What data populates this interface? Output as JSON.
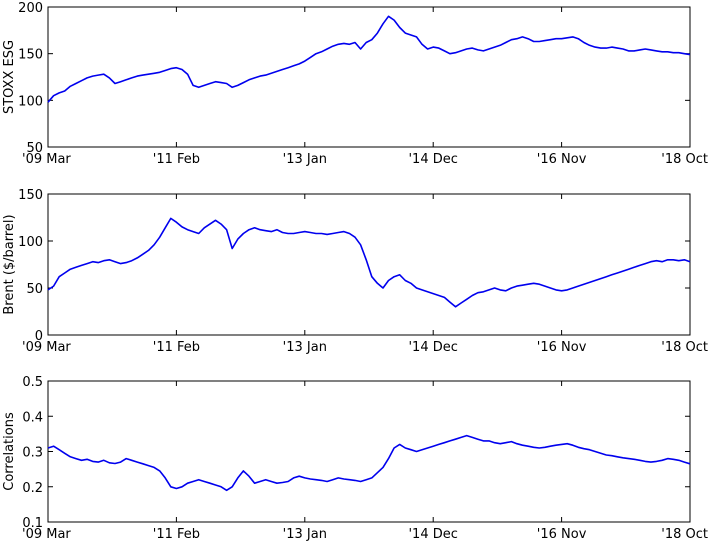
{
  "chart_data": [
    {
      "type": "line",
      "ylabel": "STOXX ESG",
      "xlabel": "",
      "title": "",
      "x_tick_labels": [
        "'09 Mar",
        "'11 Feb",
        "'13 Jan",
        "'14 Dec",
        "'16 Nov",
        "'18 Oct"
      ],
      "x_range": [
        0,
        115
      ],
      "ylim": [
        50,
        200
      ],
      "y_ticks": [
        50,
        100,
        150,
        200
      ],
      "line_color": "#0000ee",
      "series": [
        {
          "x": [
            0,
            1,
            2,
            3,
            4,
            5,
            6,
            7,
            8,
            9,
            10,
            11,
            12,
            13,
            14,
            15,
            16,
            17,
            18,
            19,
            20,
            21,
            22,
            23,
            24,
            25,
            26,
            27,
            28,
            29,
            30,
            31,
            32,
            33,
            34,
            35,
            36,
            37,
            38,
            39,
            40,
            41,
            42,
            43,
            44,
            45,
            46,
            47,
            48,
            49,
            50,
            51,
            52,
            53,
            54,
            55,
            56,
            57,
            58,
            59,
            60,
            61,
            62,
            63,
            64,
            65,
            66,
            67,
            68,
            69,
            70,
            71,
            72,
            73,
            74,
            75,
            76,
            77,
            78,
            79,
            80,
            81,
            82,
            83,
            84,
            85,
            86,
            87,
            88,
            89,
            90,
            91,
            92,
            93,
            94,
            95,
            96,
            97,
            98,
            99,
            100,
            101,
            102,
            103,
            104,
            105,
            106,
            107,
            108,
            109,
            110,
            111,
            112,
            113,
            114,
            115
          ],
          "values": [
            98,
            105,
            108,
            110,
            115,
            118,
            121,
            124,
            126,
            127,
            128,
            124,
            118,
            120,
            122,
            124,
            126,
            127,
            128,
            129,
            130,
            132,
            134,
            135,
            133,
            128,
            116,
            114,
            116,
            118,
            120,
            119,
            118,
            114,
            116,
            119,
            122,
            124,
            126,
            127,
            129,
            131,
            133,
            135,
            137,
            139,
            142,
            146,
            150,
            152,
            155,
            158,
            160,
            161,
            160,
            162,
            155,
            162,
            165,
            172,
            182,
            190,
            186,
            178,
            172,
            170,
            168,
            160,
            155,
            157,
            156,
            153,
            150,
            151,
            153,
            155,
            156,
            154,
            153,
            155,
            157,
            159,
            162,
            165,
            166,
            168,
            166,
            163,
            163,
            164,
            165,
            166,
            166,
            167,
            168,
            166,
            162,
            159,
            157,
            156,
            156,
            157,
            156,
            155,
            153,
            153,
            154,
            155,
            154,
            153,
            152,
            152,
            151,
            151,
            150,
            149
          ]
        }
      ]
    },
    {
      "type": "line",
      "ylabel": "Brent ($/barrel)",
      "xlabel": "",
      "title": "",
      "x_tick_labels": [
        "'09 Mar",
        "'11 Feb",
        "'13 Jan",
        "'14 Dec",
        "'16 Nov",
        "'18 Oct"
      ],
      "x_range": [
        0,
        115
      ],
      "ylim": [
        0,
        150
      ],
      "y_ticks": [
        0,
        50,
        100,
        150
      ],
      "line_color": "#0000ee",
      "series": [
        {
          "x": [
            0,
            1,
            2,
            3,
            4,
            5,
            6,
            7,
            8,
            9,
            10,
            11,
            12,
            13,
            14,
            15,
            16,
            17,
            18,
            19,
            20,
            21,
            22,
            23,
            24,
            25,
            26,
            27,
            28,
            29,
            30,
            31,
            32,
            33,
            34,
            35,
            36,
            37,
            38,
            39,
            40,
            41,
            42,
            43,
            44,
            45,
            46,
            47,
            48,
            49,
            50,
            51,
            52,
            53,
            54,
            55,
            56,
            57,
            58,
            59,
            60,
            61,
            62,
            63,
            64,
            65,
            66,
            67,
            68,
            69,
            70,
            71,
            72,
            73,
            74,
            75,
            76,
            77,
            78,
            79,
            80,
            81,
            82,
            83,
            84,
            85,
            86,
            87,
            88,
            89,
            90,
            91,
            92,
            93,
            94,
            95,
            96,
            97,
            98,
            99,
            100,
            101,
            102,
            103,
            104,
            105,
            106,
            107,
            108,
            109,
            110,
            111,
            112,
            113,
            114,
            115
          ],
          "values": [
            48,
            52,
            62,
            66,
            70,
            72,
            74,
            76,
            78,
            77,
            79,
            80,
            78,
            76,
            77,
            79,
            82,
            86,
            90,
            96,
            104,
            114,
            124,
            120,
            115,
            112,
            110,
            108,
            114,
            118,
            122,
            118,
            112,
            92,
            102,
            108,
            112,
            114,
            112,
            111,
            110,
            112,
            109,
            108,
            108,
            109,
            110,
            109,
            108,
            108,
            107,
            108,
            109,
            110,
            108,
            104,
            96,
            80,
            62,
            55,
            50,
            58,
            62,
            64,
            58,
            55,
            50,
            48,
            46,
            44,
            42,
            40,
            35,
            30,
            34,
            38,
            42,
            45,
            46,
            48,
            50,
            48,
            47,
            50,
            52,
            53,
            54,
            55,
            54,
            52,
            50,
            48,
            47,
            48,
            50,
            52,
            54,
            56,
            58,
            60,
            62,
            64,
            66,
            68,
            70,
            72,
            74,
            76,
            78,
            79,
            78,
            80,
            80,
            79,
            80,
            78
          ]
        }
      ]
    },
    {
      "type": "line",
      "ylabel": "Correlations",
      "xlabel": "",
      "title": "",
      "x_tick_labels": [
        "'09 Mar",
        "'11 Feb",
        "'13 Jan",
        "'14 Dec",
        "'16 Nov",
        "'18 Oct"
      ],
      "x_range": [
        0,
        115
      ],
      "ylim": [
        0.1,
        0.5
      ],
      "y_ticks": [
        0.1,
        0.2,
        0.3,
        0.4,
        0.5
      ],
      "line_color": "#0000ee",
      "series": [
        {
          "x": [
            0,
            1,
            2,
            3,
            4,
            5,
            6,
            7,
            8,
            9,
            10,
            11,
            12,
            13,
            14,
            15,
            16,
            17,
            18,
            19,
            20,
            21,
            22,
            23,
            24,
            25,
            26,
            27,
            28,
            29,
            30,
            31,
            32,
            33,
            34,
            35,
            36,
            37,
            38,
            39,
            40,
            41,
            42,
            43,
            44,
            45,
            46,
            47,
            48,
            49,
            50,
            51,
            52,
            53,
            54,
            55,
            56,
            57,
            58,
            59,
            60,
            61,
            62,
            63,
            64,
            65,
            66,
            67,
            68,
            69,
            70,
            71,
            72,
            73,
            74,
            75,
            76,
            77,
            78,
            79,
            80,
            81,
            82,
            83,
            84,
            85,
            86,
            87,
            88,
            89,
            90,
            91,
            92,
            93,
            94,
            95,
            96,
            97,
            98,
            99,
            100,
            101,
            102,
            103,
            104,
            105,
            106,
            107,
            108,
            109,
            110,
            111,
            112,
            113,
            114,
            115
          ],
          "values": [
            0.31,
            0.315,
            0.305,
            0.295,
            0.285,
            0.28,
            0.275,
            0.278,
            0.272,
            0.27,
            0.275,
            0.268,
            0.266,
            0.27,
            0.28,
            0.275,
            0.27,
            0.265,
            0.26,
            0.255,
            0.245,
            0.225,
            0.2,
            0.195,
            0.2,
            0.21,
            0.215,
            0.22,
            0.215,
            0.21,
            0.205,
            0.2,
            0.19,
            0.2,
            0.225,
            0.245,
            0.23,
            0.21,
            0.215,
            0.22,
            0.215,
            0.21,
            0.212,
            0.215,
            0.225,
            0.23,
            0.225,
            0.222,
            0.22,
            0.218,
            0.215,
            0.22,
            0.225,
            0.222,
            0.22,
            0.218,
            0.215,
            0.22,
            0.225,
            0.24,
            0.255,
            0.28,
            0.31,
            0.32,
            0.31,
            0.305,
            0.3,
            0.305,
            0.31,
            0.315,
            0.32,
            0.325,
            0.33,
            0.335,
            0.34,
            0.345,
            0.34,
            0.335,
            0.33,
            0.33,
            0.325,
            0.322,
            0.325,
            0.328,
            0.322,
            0.318,
            0.315,
            0.312,
            0.31,
            0.312,
            0.315,
            0.318,
            0.32,
            0.322,
            0.318,
            0.312,
            0.308,
            0.305,
            0.3,
            0.295,
            0.29,
            0.288,
            0.285,
            0.282,
            0.28,
            0.278,
            0.275,
            0.272,
            0.27,
            0.272,
            0.275,
            0.28,
            0.278,
            0.275,
            0.27,
            0.265
          ]
        }
      ]
    }
  ]
}
